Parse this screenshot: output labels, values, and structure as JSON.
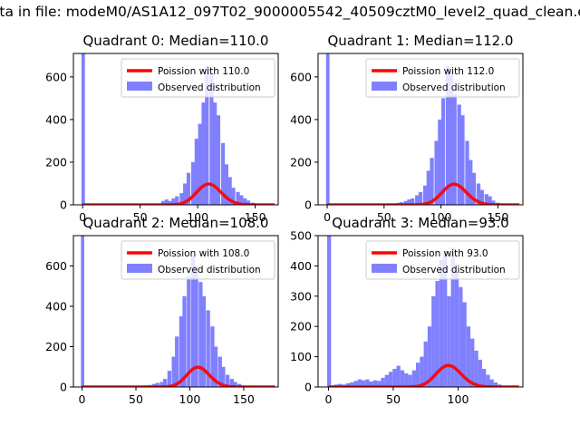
{
  "figure": {
    "title": "Data in file: modeM0/AS1A12_097T02_9000005542_40509cztM0_level2_quad_clean.evt"
  },
  "colors": {
    "poisson_line": "#ff0000",
    "observed_bars": "#8080ff",
    "axis": "#000000",
    "background": "#ffffff"
  },
  "chart_data": [
    {
      "type": "histogram",
      "title": "Quadrant 0: Median=110.0",
      "xlim": [
        -8,
        170
      ],
      "ylim": [
        0,
        710
      ],
      "xticks": [
        0,
        50,
        100,
        150
      ],
      "yticks": [
        0,
        200,
        400,
        600
      ],
      "legend": {
        "placement": "top-right",
        "entries": [
          "Poission with 110.0",
          "Observed distribution"
        ]
      },
      "poisson_mean": 110,
      "poisson_scale": 2570,
      "bin_width": 3.3,
      "spike": {
        "x": 0,
        "value": 710
      },
      "series": [
        {
          "name": "Observed distribution",
          "x": [
            60,
            63,
            66,
            70,
            73,
            76,
            79,
            82,
            86,
            89,
            92,
            96,
            99,
            102,
            105,
            108,
            112,
            115,
            118,
            122,
            125,
            128,
            131,
            135,
            138,
            141,
            144,
            148,
            151,
            155,
            158
          ],
          "values": [
            5,
            3,
            5,
            18,
            25,
            18,
            30,
            40,
            55,
            100,
            150,
            200,
            310,
            380,
            480,
            650,
            610,
            480,
            420,
            290,
            190,
            130,
            80,
            60,
            45,
            30,
            20,
            10,
            5,
            3,
            2
          ]
        },
        {
          "name": "Poission with 110.0",
          "curve": "poisson"
        }
      ]
    },
    {
      "type": "histogram",
      "title": "Quadrant 1: Median=112.0",
      "xlim": [
        -8,
        172
      ],
      "ylim": [
        0,
        710
      ],
      "xticks": [
        0,
        50,
        100,
        150
      ],
      "yticks": [
        0,
        200,
        400,
        600
      ],
      "legend": {
        "placement": "top-right",
        "entries": [
          "Poission with 112.0",
          "Observed distribution"
        ]
      },
      "poisson_mean": 112,
      "poisson_scale": 2570,
      "bin_width": 3.4,
      "spike": {
        "x": 0,
        "value": 710
      },
      "series": [
        {
          "name": "Observed distribution",
          "x": [
            55,
            58,
            62,
            65,
            69,
            72,
            75,
            79,
            82,
            86,
            89,
            92,
            96,
            99,
            102,
            106,
            109,
            112,
            116,
            119,
            123,
            126,
            129,
            133,
            136,
            140,
            143,
            146,
            150,
            153,
            157
          ],
          "values": [
            3,
            5,
            8,
            12,
            18,
            25,
            30,
            45,
            60,
            90,
            160,
            220,
            300,
            400,
            500,
            650,
            610,
            520,
            470,
            420,
            300,
            210,
            150,
            100,
            70,
            50,
            40,
            20,
            10,
            5,
            3
          ]
        },
        {
          "name": "Poission with 112.0",
          "curve": "poisson"
        }
      ]
    },
    {
      "type": "histogram",
      "title": "Quadrant 2: Median=108.0",
      "xlim": [
        -8,
        182
      ],
      "ylim": [
        0,
        750
      ],
      "xticks": [
        0,
        50,
        100,
        150
      ],
      "yticks": [
        0,
        200,
        400,
        600
      ],
      "legend": {
        "placement": "top-right",
        "entries": [
          "Poission with 108.0",
          "Observed distribution"
        ]
      },
      "poisson_mean": 108,
      "poisson_scale": 2550,
      "bin_width": 3.6,
      "spike": {
        "x": 0,
        "value": 750
      },
      "series": [
        {
          "name": "Observed distribution",
          "x": [
            52,
            56,
            59,
            63,
            67,
            70,
            74,
            77,
            81,
            85,
            88,
            92,
            95,
            99,
            103,
            106,
            110,
            113,
            117,
            121,
            124,
            128,
            131,
            135,
            139,
            142,
            146,
            149,
            153,
            157
          ],
          "values": [
            3,
            5,
            8,
            10,
            15,
            20,
            25,
            40,
            80,
            150,
            250,
            350,
            450,
            550,
            650,
            600,
            520,
            450,
            380,
            300,
            200,
            150,
            100,
            60,
            40,
            25,
            15,
            8,
            5,
            3
          ]
        },
        {
          "name": "Poission with 108.0",
          "curve": "poisson"
        }
      ]
    },
    {
      "type": "histogram",
      "title": "Quadrant 3: Median=93.0",
      "xlim": [
        -8,
        150
      ],
      "ylim": [
        0,
        500
      ],
      "xticks": [
        0,
        50,
        100
      ],
      "yticks": [
        0,
        100,
        200,
        300,
        400,
        500
      ],
      "legend": {
        "placement": "top-right",
        "entries": [
          "Poission with 93.0",
          "Observed distribution"
        ]
      },
      "poisson_mean": 93,
      "poisson_scale": 1720,
      "bin_width": 3.0,
      "spike": {
        "x": 0,
        "value": 500
      },
      "series": [
        {
          "name": "Observed distribution",
          "x": [
            3,
            6,
            9,
            12,
            15,
            18,
            21,
            24,
            27,
            30,
            33,
            36,
            39,
            42,
            45,
            48,
            51,
            54,
            57,
            60,
            63,
            66,
            69,
            72,
            75,
            78,
            81,
            84,
            87,
            90,
            93,
            96,
            99,
            102,
            105,
            108,
            111,
            114,
            117,
            120,
            123,
            126,
            129,
            132
          ],
          "values": [
            5,
            8,
            10,
            8,
            12,
            15,
            20,
            25,
            22,
            25,
            18,
            22,
            20,
            30,
            40,
            50,
            60,
            70,
            55,
            45,
            40,
            55,
            80,
            100,
            150,
            200,
            300,
            350,
            420,
            450,
            300,
            460,
            380,
            330,
            280,
            200,
            160,
            120,
            90,
            60,
            40,
            25,
            15,
            8
          ]
        },
        {
          "name": "Poission with 93.0",
          "curve": "poisson"
        }
      ]
    }
  ]
}
